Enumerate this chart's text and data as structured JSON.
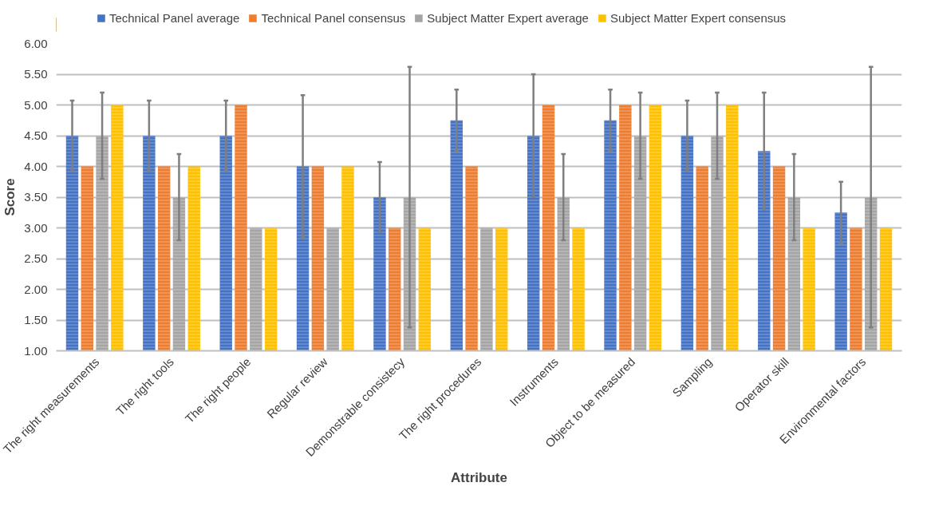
{
  "chart_data": {
    "type": "bar",
    "xlabel": "Attribute",
    "ylabel": "Score",
    "legend": "top",
    "grid": "y",
    "categories": [
      "The right measurements",
      "The right tools",
      "The right people",
      "Regular review",
      "Demonstrable consistecy",
      "The right procedures",
      "Instruments",
      "Object to be measured",
      "Sampling",
      "Operator skill",
      "Environmental factors"
    ],
    "ylim": [
      1,
      6
    ],
    "yticks": [
      {
        "value": 1,
        "label": "1.00"
      },
      {
        "value": 1.5,
        "label": "1.50"
      },
      {
        "value": 2,
        "label": "2.00"
      },
      {
        "value": 2.5,
        "label": "2.50"
      },
      {
        "value": 3,
        "label": "3.00"
      },
      {
        "value": 3.5,
        "label": "3.50"
      },
      {
        "value": 4,
        "label": "4.00"
      },
      {
        "value": 4.5,
        "label": "4.50"
      },
      {
        "value": 5,
        "label": "5.00"
      },
      {
        "value": 5.5,
        "label": "5.50"
      },
      {
        "value": 6,
        "label": "6.00"
      }
    ],
    "series": [
      {
        "name": "Technical Panel average",
        "color": "#4472c4",
        "values": [
          4.5,
          4.5,
          4.5,
          4.0,
          3.5,
          4.75,
          4.5,
          4.75,
          4.5,
          4.25,
          3.25
        ],
        "errors": [
          0.57,
          0.57,
          0.57,
          1.16,
          0.57,
          0.5,
          1.0,
          0.5,
          0.57,
          0.95,
          0.5
        ]
      },
      {
        "name": "Technical Panel consensus",
        "color": "#ed7d31",
        "values": [
          4,
          4,
          5,
          4,
          3,
          4,
          5,
          5,
          4,
          4,
          3
        ]
      },
      {
        "name": "Subject Matter Expert average",
        "color": "#a5a5a5",
        "values": [
          4.5,
          3.5,
          3,
          3,
          3.5,
          3,
          3.5,
          4.5,
          4.5,
          3.5,
          3.5
        ],
        "errors": [
          0.7,
          0.7,
          null,
          null,
          2.12,
          null,
          0.7,
          0.7,
          0.7,
          0.7,
          2.12
        ]
      },
      {
        "name": "Subject Matter Expert consensus",
        "color": "#ffc000",
        "values": [
          5,
          4,
          3,
          4,
          3,
          3,
          3,
          5,
          5,
          3,
          3
        ]
      }
    ]
  }
}
